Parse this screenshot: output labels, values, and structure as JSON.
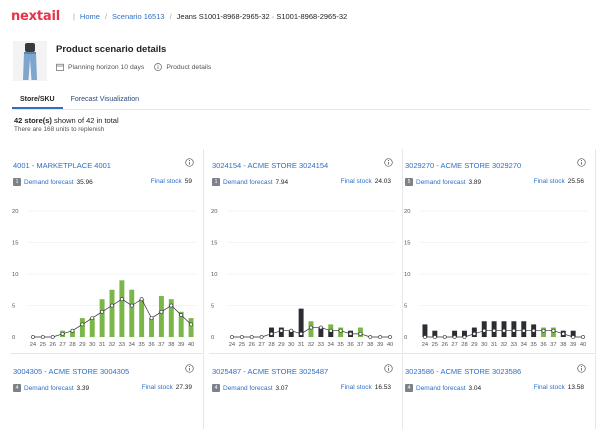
{
  "header": {
    "logo": "nextail",
    "breadcrumb": [
      "Home",
      "Scenario 16513"
    ],
    "current": "Jeans S1001-8968-2965-32 · S1001-8968-2965-32"
  },
  "product": {
    "title": "Product scenario details",
    "planning_horizon": "Planning horizon 10 days",
    "details_link": "Product details"
  },
  "tabs": [
    {
      "label": "Store/SKU",
      "active": true
    },
    {
      "label": "Forecast Visualization",
      "active": false
    }
  ],
  "summary": {
    "count_strong": "42 store(s)",
    "count_rest": " shown of 42 in total",
    "replenish": "There are 168 units to replenish"
  },
  "labels": {
    "demand_forecast": "Demand forecast",
    "final_stock": "Final stock"
  },
  "colors": {
    "accent": "#2f6fc4",
    "green": "#7ab648",
    "dark": "#2b2d33",
    "brand": "#e8324a"
  },
  "chart_data": [
    {
      "type": "bar",
      "title": "4001 - MARKETPLACE 4001",
      "badge": "1",
      "demand_forecast": "35.96",
      "final_stock": "59",
      "x": [
        24,
        25,
        26,
        27,
        28,
        29,
        30,
        31,
        32,
        33,
        34,
        35,
        36,
        37,
        38,
        39,
        40
      ],
      "y_ticks": [
        0,
        5,
        10,
        15,
        20
      ],
      "ylim": [
        0,
        20
      ],
      "series": [
        {
          "values": [
            0,
            0,
            0,
            1,
            1,
            3,
            3,
            6,
            7.5,
            9,
            7.5,
            6,
            3,
            6.5,
            6,
            4,
            3
          ]
        },
        {
          "values": [
            0,
            0,
            0,
            0,
            0,
            0,
            0,
            0,
            0,
            0,
            0,
            0,
            0,
            0,
            0,
            0,
            0
          ]
        },
        {
          "values": [
            0,
            0,
            0,
            0.5,
            1,
            2,
            3,
            4,
            5,
            6,
            5,
            6,
            3,
            4,
            5,
            3.5,
            2
          ]
        }
      ]
    },
    {
      "type": "bar",
      "title": "3024154 - ACME STORE 3024154",
      "badge": "1",
      "demand_forecast": "7.94",
      "final_stock": "24.03",
      "x": [
        24,
        25,
        26,
        27,
        28,
        29,
        30,
        31,
        32,
        33,
        34,
        35,
        36,
        37,
        38,
        39,
        40
      ],
      "y_ticks": [
        0,
        5,
        10,
        15,
        20
      ],
      "ylim": [
        0,
        20
      ],
      "series": [
        {
          "values": [
            0,
            0,
            0,
            0,
            1,
            0,
            0,
            0,
            2.5,
            0,
            2,
            1.5,
            0,
            1.5,
            0,
            0,
            0
          ]
        },
        {
          "values": [
            0,
            0,
            0,
            0,
            1.5,
            1.5,
            1,
            4.5,
            0,
            1.5,
            1,
            0,
            1,
            0,
            0,
            0,
            0
          ]
        },
        {
          "values": [
            0,
            0,
            0,
            0,
            0.5,
            1,
            1,
            0.5,
            1.5,
            1.5,
            1,
            1,
            0.5,
            0.5,
            0,
            0,
            0
          ]
        }
      ]
    },
    {
      "type": "bar",
      "title": "3029270 - ACME STORE 3029270",
      "badge": "5",
      "demand_forecast": "3.89",
      "final_stock": "25.56",
      "x": [
        24,
        25,
        26,
        27,
        28,
        29,
        30,
        31,
        32,
        33,
        34,
        35,
        36,
        37,
        38,
        39,
        40
      ],
      "y_ticks": [
        0,
        5,
        10,
        15,
        20
      ],
      "ylim": [
        0,
        20
      ],
      "series": [
        {
          "values": [
            0,
            0,
            0,
            0,
            0,
            0,
            0,
            0,
            0,
            0,
            0,
            0,
            1.5,
            1.5,
            0,
            0,
            0
          ]
        },
        {
          "values": [
            2,
            1,
            0,
            1,
            1,
            1.5,
            2.5,
            2.5,
            2.5,
            2.5,
            2.5,
            2,
            0,
            0,
            1,
            1,
            0
          ]
        },
        {
          "values": [
            0,
            0,
            0,
            0,
            0,
            0.5,
            1,
            1,
            1,
            1,
            1,
            1,
            1,
            1,
            0.5,
            0,
            0
          ]
        }
      ]
    }
  ],
  "bottom_panels": [
    {
      "title": "3004305 - ACME STORE 3004305",
      "badge": "4",
      "demand_forecast": "3.39",
      "final_stock": "27.39"
    },
    {
      "title": "3025487 - ACME STORE 3025487",
      "badge": "4",
      "demand_forecast": "3.07",
      "final_stock": "16.53"
    },
    {
      "title": "3023586 - ACME STORE 3023586",
      "badge": "4",
      "demand_forecast": "3.04",
      "final_stock": "13.58"
    }
  ]
}
